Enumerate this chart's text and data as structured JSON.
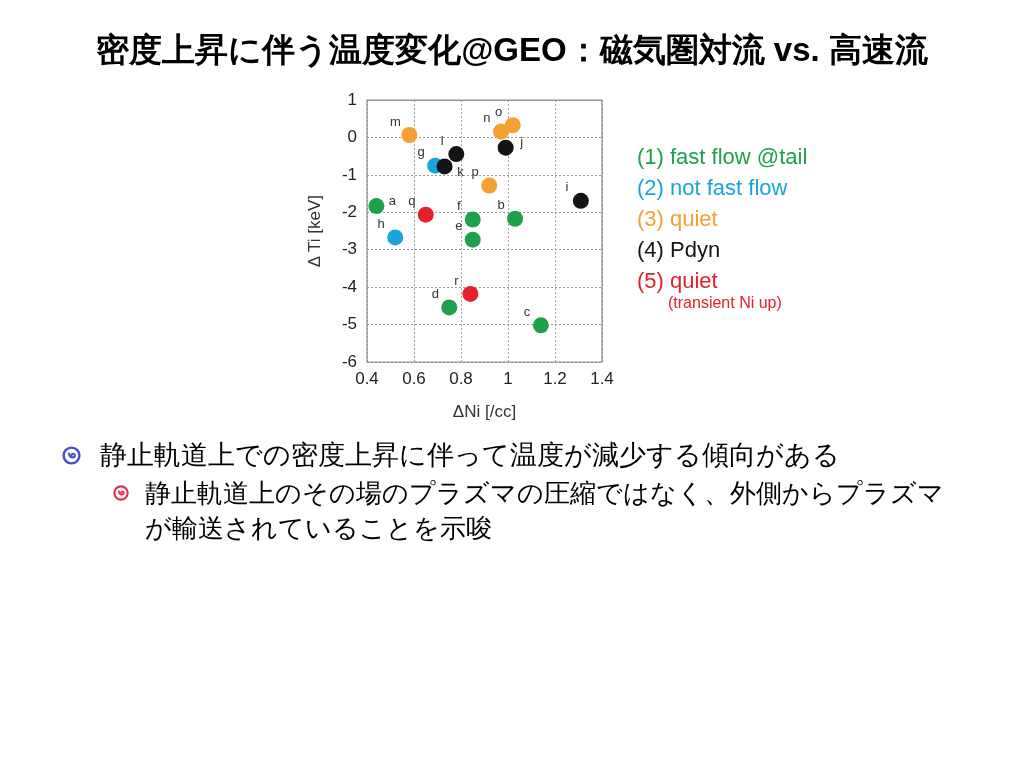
{
  "chart_data": {
    "type": "scatter",
    "title": "密度上昇に伴う温度変化@GEO：磁気圏対流 vs. 高速流",
    "xlabel": "ΔNi [/cc]",
    "ylabel": "Δ Ti [keV]",
    "xlim": [
      0.4,
      1.4
    ],
    "xticks": [
      0.4,
      0.6,
      0.8,
      1,
      1.2,
      1.4
    ],
    "ylim": [
      -6,
      1
    ],
    "yticks": [
      -6,
      -5,
      -4,
      -3,
      -2,
      -1,
      0,
      1
    ],
    "grid": true,
    "marker": "circle",
    "legend": "right",
    "series": [
      {
        "name": "(1) fast flow @tail",
        "color": "#1fa14b",
        "x": [
          0.44,
          1.03,
          1.14,
          0.75,
          0.85,
          0.85
        ],
        "values": [
          -1.83,
          -2.17,
          -5.02,
          -4.54,
          -2.73,
          -2.19
        ]
      },
      {
        "name": "(2) not fast flow",
        "color": "#1aa3dc",
        "x": [
          0.69,
          0.52
        ],
        "values": [
          -0.75,
          -2.67
        ]
      },
      {
        "name": "(3) quiet",
        "color": "#f5a033",
        "x": [
          0.58,
          0.97,
          1.02,
          0.92
        ],
        "values": [
          0.07,
          0.16,
          0.33,
          -1.28
        ]
      },
      {
        "name": "(4) Pdyn",
        "color": "#141414",
        "x": [
          1.31,
          0.99,
          0.73,
          0.78
        ],
        "values": [
          -1.69,
          -0.27,
          -0.77,
          -0.44
        ]
      },
      {
        "name": "(5) quiet\n(transient Ni up)",
        "color": "#e5202a",
        "x": [
          0.65,
          0.84
        ],
        "values": [
          -2.06,
          -4.18
        ]
      }
    ],
    "annotations": [
      {
        "text": "a",
        "x": 0.44,
        "y": -1.83
      },
      {
        "text": "b",
        "x": 1.03,
        "y": -2.17
      },
      {
        "text": "c",
        "x": 1.14,
        "y": -5.02
      },
      {
        "text": "d",
        "x": 0.75,
        "y": -4.54
      },
      {
        "text": "e",
        "x": 0.85,
        "y": -2.73
      },
      {
        "text": "f",
        "x": 0.85,
        "y": -2.19
      },
      {
        "text": "g",
        "x": 0.69,
        "y": -0.75
      },
      {
        "text": "h",
        "x": 0.52,
        "y": -2.67
      },
      {
        "text": "i",
        "x": 1.31,
        "y": -1.69
      },
      {
        "text": "j",
        "x": 0.99,
        "y": -0.27
      },
      {
        "text": "k",
        "x": 0.73,
        "y": -0.77
      },
      {
        "text": "l",
        "x": 0.78,
        "y": -0.44
      },
      {
        "text": "m",
        "x": 0.58,
        "y": 0.07
      },
      {
        "text": "n",
        "x": 0.97,
        "y": 0.16
      },
      {
        "text": "o",
        "x": 1.02,
        "y": 0.33
      },
      {
        "text": "p",
        "x": 0.92,
        "y": -1.28
      },
      {
        "text": "q",
        "x": 0.65,
        "y": -2.06
      },
      {
        "text": "r",
        "x": 0.84,
        "y": -4.18
      },
      "静止軌道上での密度上昇に伴って温度が減少する傾向がある",
      "静止軌道上のその場のプラズマの圧縮ではなく、外側からプラズマが輸送されていることを示唆"
    ]
  }
}
